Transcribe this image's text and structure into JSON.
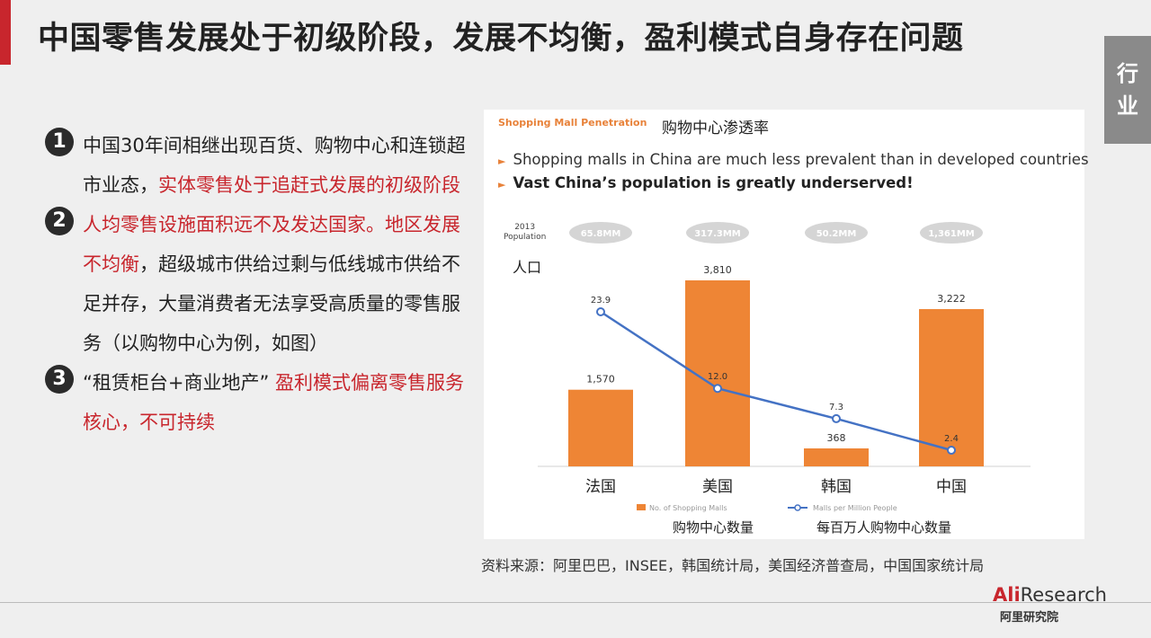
{
  "slide": {
    "title": "中国零售发展处于初级阶段，发展不均衡，盈利模式自身存在问题",
    "side_tab": [
      "行",
      "业"
    ]
  },
  "points": [
    {
      "num": "1",
      "text": "中国30年间相继出现百货、购物中心和连锁超市业态，",
      "highlight": "实体零售处于追赶式发展的初级阶段",
      "tail": ""
    },
    {
      "num": "2",
      "text": "",
      "highlight": "人均零售设施面积远不及发达国家。地区发展不均衡",
      "tail": "，超级城市供给过剩与低线城市供给不足并存，大量消费者无法享受高质量的零售服务（以购物中心为例，如图）"
    },
    {
      "num": "3",
      "text": "“租赁柜台+商业地产” ",
      "highlight": "盈利模式偏离零售服务核心，不可持续",
      "tail": ""
    }
  ],
  "chart_header": {
    "en_title": "Shopping Mall Penetration",
    "cn_title": "购物中心渗透率",
    "bullet1": "Shopping malls in China are much less prevalent than in developed countries",
    "bullet2": "Vast China’s population is greatly underserved!",
    "pop_label_line1": "2013",
    "pop_label_line2": "Population",
    "pop_cn": "人口"
  },
  "chart_data": {
    "type": "bar",
    "categories": [
      "法国",
      "美国",
      "韩国",
      "中国"
    ],
    "population_labels": [
      "65.8MM",
      "317.3MM",
      "50.2MM",
      "1,361MM"
    ],
    "series": [
      {
        "name": "No. of Shopping Malls",
        "type": "bar",
        "values": [
          1570,
          3810,
          368,
          3222
        ],
        "labels": [
          "1,570",
          "3,810",
          "368",
          "3,222"
        ],
        "color": "#ee8535"
      },
      {
        "name": "Malls per Million People",
        "type": "line",
        "values": [
          23.9,
          12.0,
          7.3,
          2.4
        ],
        "labels": [
          "23.9",
          "12.0",
          "7.3",
          "2.4"
        ],
        "color": "#4472c4"
      }
    ],
    "legend_cn": [
      "购物中心数量",
      "每百万人购物中心数量"
    ]
  },
  "source_text": "资料来源：阿里巴巴，INSEE，韩国统计局，美国经济普查局，中国国家统计局",
  "logo": {
    "ali": "Ali",
    "research": "Research",
    "sub": "阿里研究院"
  }
}
